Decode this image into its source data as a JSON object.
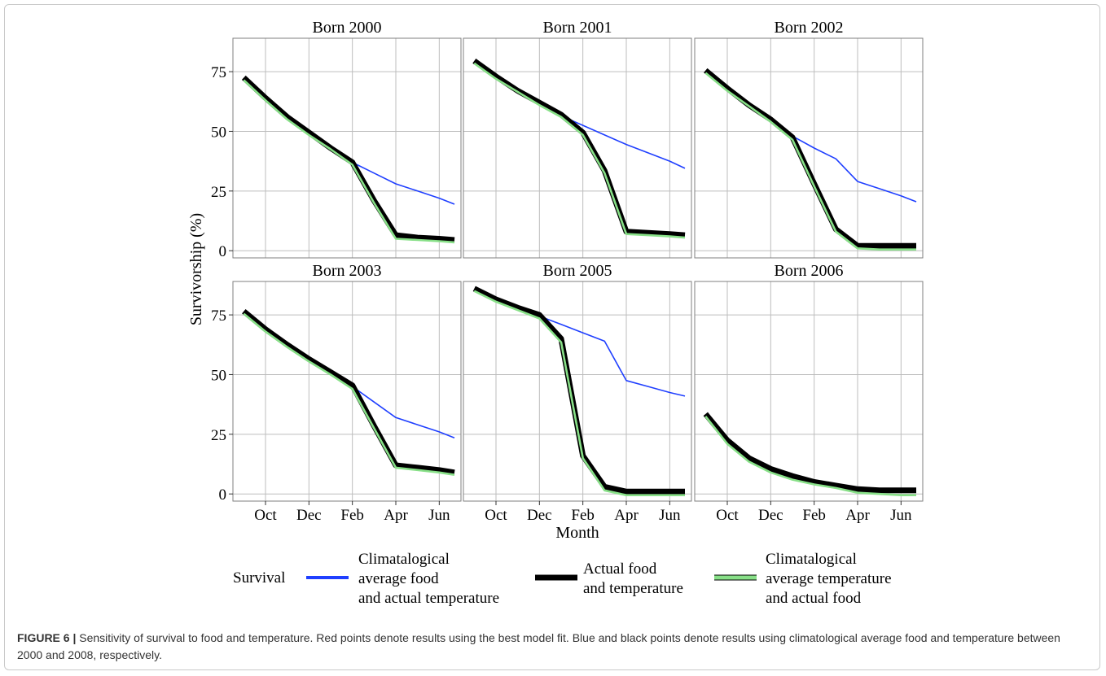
{
  "chart_data": {
    "type": "line",
    "panel_titles": [
      "Born 2000",
      "Born 2001",
      "Born 2002",
      "Born 2003",
      "Born 2005",
      "Born 2006"
    ],
    "ylabel": "Survivorship (%)",
    "xlabel": "Month",
    "y_ticks": [
      0,
      25,
      50,
      75
    ],
    "ylim": [
      -3,
      89
    ],
    "x_ticks": [
      "Oct",
      "Dec",
      "Feb",
      "Apr",
      "Jun"
    ],
    "x_tick_positions": [
      1.5,
      3.5,
      5.5,
      7.5,
      9.5
    ],
    "xlim": [
      0,
      10.5
    ],
    "grid": true,
    "legend": {
      "title": "Survival",
      "placement": "bottom",
      "entries": [
        {
          "label_lines": [
            "Climatalogical",
            "average food",
            "and actual temperature"
          ],
          "color": "#1f3fff"
        },
        {
          "label_lines": [
            "Actual food",
            " and temperature"
          ],
          "color": "#000000"
        },
        {
          "label_lines": [
            "Climatalogical",
            "average temperature",
            "and actual food"
          ],
          "color": "#88e088"
        }
      ]
    },
    "panels": [
      {
        "title": "Born 2000",
        "x": [
          0.5,
          1.5,
          2.5,
          3.5,
          4.5,
          5.5,
          6.5,
          7.5,
          8.5,
          9.5,
          10.2
        ],
        "series": [
          {
            "name": "Climatalogical average food and actual temperature",
            "values": [
              72,
              63.5,
              55.5,
              49,
              43,
              37,
              32.5,
              28,
              25,
              22,
              19.5
            ]
          },
          {
            "name": "Actual food and temperature",
            "values": [
              72.5,
              64,
              56,
              49.5,
              43,
              37,
              21,
              6.5,
              5.5,
              5,
              4.5
            ]
          },
          {
            "name": "Climatalogical average temperature and actual food",
            "values": [
              71.5,
              63,
              55,
              48.5,
              42.5,
              36,
              20,
              5,
              4.5,
              4,
              3.5
            ]
          }
        ]
      },
      {
        "title": "Born 2001",
        "x": [
          0.5,
          1.5,
          2.5,
          3.5,
          4.5,
          5.5,
          6.5,
          7.5,
          8.5,
          9.5,
          10.2
        ],
        "series": [
          {
            "name": "Climatalogical average food and actual temperature",
            "values": [
              79,
              72,
              66.5,
              61,
              56.5,
              52.5,
              48.5,
              44.5,
              41,
              37.5,
              34.5
            ]
          },
          {
            "name": "Actual food and temperature",
            "values": [
              79.5,
              73,
              67,
              62,
              57,
              49.5,
              33.5,
              8,
              7.5,
              7,
              6.5
            ]
          },
          {
            "name": "Climatalogical average temperature and actual food",
            "values": [
              78.5,
              72,
              66.5,
              61,
              56,
              48.5,
              32.5,
              7,
              6.5,
              6,
              5.5
            ]
          }
        ]
      },
      {
        "title": "Born 2002",
        "x": [
          0.5,
          1.5,
          2.5,
          3.5,
          4.5,
          5.5,
          6.5,
          7.5,
          8.5,
          9.5,
          10.2
        ],
        "series": [
          {
            "name": "Climatalogical average food and actual temperature",
            "values": [
              75,
              67.5,
              61,
              54,
              48,
              43,
              38.5,
              29,
              26,
              23,
              20.5
            ]
          },
          {
            "name": "Actual food and temperature",
            "values": [
              75.5,
              68,
              61,
              55,
              47.5,
              28,
              9,
              2,
              2,
              2,
              2
            ]
          },
          {
            "name": "Climatalogical average temperature and actual food",
            "values": [
              74.5,
              67,
              60.5,
              54,
              46.5,
              27,
              8,
              1,
              0.5,
              0.5,
              0.5
            ]
          }
        ]
      },
      {
        "title": "Born 2003",
        "x": [
          0.5,
          1.5,
          2.5,
          3.5,
          4.5,
          5.5,
          6.5,
          7.5,
          8.5,
          9.5,
          10.2
        ],
        "series": [
          {
            "name": "Climatalogical average food and actual temperature",
            "values": [
              76,
              68.5,
              62,
              56,
              50.5,
              45,
              38.5,
              32,
              29,
              26,
              23.5
            ]
          },
          {
            "name": "Actual food and temperature",
            "values": [
              76.5,
              69,
              62.5,
              56.5,
              51,
              45.5,
              28.5,
              12,
              11,
              10,
              9
            ]
          },
          {
            "name": "Climatalogical average temperature and actual food",
            "values": [
              75.5,
              68,
              61.5,
              55.5,
              50,
              44,
              27.5,
              11,
              10,
              9,
              8
            ]
          }
        ]
      },
      {
        "title": "Born 2005",
        "x": [
          0.5,
          1.5,
          2.5,
          3.5,
          4.5,
          5.5,
          6.5,
          7.5,
          8.5,
          9.5,
          10.2
        ],
        "series": [
          {
            "name": "Climatalogical average food and actual temperature",
            "values": [
              85.5,
              81,
              77.5,
              74.5,
              71,
              67.5,
              64,
              47.5,
              45,
              42.5,
              41
            ]
          },
          {
            "name": "Actual food and temperature",
            "values": [
              86,
              81.5,
              78,
              75,
              65,
              16,
              3,
              1,
              1,
              1,
              1
            ]
          },
          {
            "name": "Climatalogical average temperature and actual food",
            "values": [
              85,
              80.5,
              77,
              73.5,
              63.5,
              15,
              1.5,
              -0.5,
              -0.5,
              -0.5,
              -0.5
            ]
          }
        ]
      },
      {
        "title": "Born 2006",
        "x": [
          0.5,
          1.5,
          2.5,
          3.5,
          4.5,
          5.5,
          6.5,
          7.5,
          8.5,
          9.5,
          10.2
        ],
        "series": [
          {
            "name": "Climatalogical average food and actual temperature",
            "values": [
              33,
              22,
              15,
              10.5,
              7.5,
              5,
              3.5,
              2,
              1.5,
              1.5,
              1.5
            ]
          },
          {
            "name": "Actual food and temperature",
            "values": [
              33.5,
              22.5,
              15,
              10.5,
              7.5,
              5,
              3.5,
              2,
              1.5,
              1.5,
              1.5
            ]
          },
          {
            "name": "Climatalogical average temperature and actual food",
            "values": [
              32.5,
              21,
              13.5,
              9,
              6,
              4,
              2.5,
              0.5,
              0,
              -0.5,
              -0.5
            ]
          }
        ]
      }
    ]
  },
  "caption": {
    "label": "FIGURE 6 |",
    "text": " Sensitivity of survival to food and temperature. Red points denote results using the best model fit. Blue and black points denote results using climatological average food and temperature between 2000 and 2008, respectively."
  },
  "colors": {
    "blue_series": "#1f3fff",
    "black_series": "#000000",
    "green_series": "#88e088",
    "grid": "#bdbdbd",
    "panel_border": "#7f7f7f",
    "text": "#000000",
    "caption_text": "#333333"
  }
}
